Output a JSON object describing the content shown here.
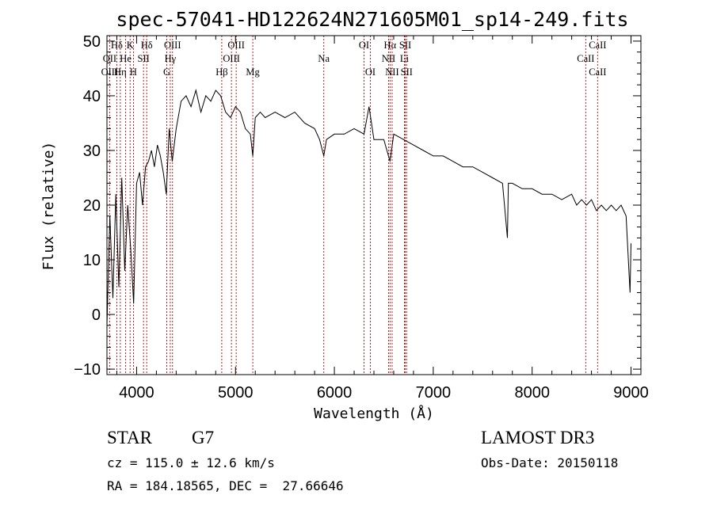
{
  "chart_data": {
    "type": "line",
    "title": "spec-57041-HD122624N271605M01_sp14-249.fits",
    "xlabel": "Wavelength (Å)",
    "ylabel": "Flux (relative)",
    "xlim": [
      3700,
      9100
    ],
    "ylim": [
      -11,
      51
    ],
    "xticks": [
      4000,
      5000,
      6000,
      7000,
      8000,
      9000
    ],
    "yticks": [
      -10,
      0,
      10,
      20,
      30,
      40,
      50
    ],
    "spectrum": {
      "x": [
        3700,
        3730,
        3760,
        3790,
        3820,
        3850,
        3880,
        3910,
        3940,
        3970,
        4000,
        4030,
        4060,
        4090,
        4120,
        4150,
        4180,
        4210,
        4240,
        4270,
        4300,
        4330,
        4360,
        4400,
        4450,
        4500,
        4550,
        4600,
        4650,
        4700,
        4750,
        4800,
        4850,
        4900,
        4950,
        5000,
        5050,
        5100,
        5150,
        5175,
        5200,
        5250,
        5300,
        5400,
        5500,
        5600,
        5700,
        5800,
        5850,
        5893,
        5920,
        6000,
        6100,
        6200,
        6300,
        6350,
        6400,
        6500,
        6563,
        6600,
        6700,
        6800,
        6900,
        7000,
        7100,
        7200,
        7300,
        7400,
        7500,
        7600,
        7700,
        7750,
        7760,
        7800,
        7900,
        8000,
        8100,
        8200,
        8300,
        8400,
        8450,
        8500,
        8550,
        8600,
        8650,
        8700,
        8750,
        8800,
        8850,
        8900,
        8950,
        8990,
        9000
      ],
      "y": [
        -2,
        18,
        3,
        22,
        5,
        25,
        8,
        20,
        12,
        2,
        24,
        26,
        20,
        27,
        28,
        30,
        27,
        31,
        29,
        26,
        22,
        34,
        28,
        34,
        39,
        40,
        38,
        41,
        37,
        40,
        39,
        41,
        40,
        37,
        36,
        38,
        37,
        34,
        33,
        29,
        36,
        37,
        36,
        37,
        36,
        37,
        35,
        34,
        32,
        29,
        32,
        33,
        33,
        34,
        33,
        38,
        32,
        32,
        28,
        33,
        32,
        31,
        30,
        29,
        29,
        28,
        27,
        27,
        26,
        25,
        24,
        14,
        24,
        24,
        23,
        23,
        22,
        22,
        21,
        22,
        20,
        21,
        20,
        21,
        19,
        20,
        19,
        20,
        19,
        20,
        18,
        4,
        13
      ]
    },
    "lines": [
      {
        "label": "Hδ",
        "wave": 3800,
        "row": 1
      },
      {
        "label": "OII",
        "wave": 3727,
        "row": 2
      },
      {
        "label": "OIII",
        "wave": 3727,
        "row": 3
      },
      {
        "label": "K",
        "wave": 3934,
        "row": 1
      },
      {
        "label": "He",
        "wave": 3889,
        "row": 2
      },
      {
        "label": "Hη",
        "wave": 3835,
        "row": 3
      },
      {
        "label": "SII",
        "wave": 4070,
        "row": 2
      },
      {
        "label": "H",
        "wave": 3968,
        "row": 3
      },
      {
        "label": "Hδ",
        "wave": 4102,
        "row": 1
      },
      {
        "label": "OIII",
        "wave": 4363,
        "row": 1
      },
      {
        "label": "Hγ",
        "wave": 4340,
        "row": 2
      },
      {
        "label": "G",
        "wave": 4305,
        "row": 3
      },
      {
        "label": "Hβ",
        "wave": 4861,
        "row": 3
      },
      {
        "label": "OIII",
        "wave": 5007,
        "row": 1
      },
      {
        "label": "OIII",
        "wave": 4959,
        "row": 2
      },
      {
        "label": "Mg",
        "wave": 5175,
        "row": 3
      },
      {
        "label": "Na",
        "wave": 5893,
        "row": 2
      },
      {
        "label": "OI",
        "wave": 6300,
        "row": 1
      },
      {
        "label": "OI",
        "wave": 6364,
        "row": 3
      },
      {
        "label": "Hα",
        "wave": 6563,
        "row": 1
      },
      {
        "label": "SII",
        "wave": 6717,
        "row": 1
      },
      {
        "label": "NII",
        "wave": 6548,
        "row": 2
      },
      {
        "label": "Li",
        "wave": 6708,
        "row": 2
      },
      {
        "label": "NII",
        "wave": 6584,
        "row": 3
      },
      {
        "label": "SII",
        "wave": 6731,
        "row": 3
      },
      {
        "label": "CaII",
        "wave": 8662,
        "row": 1
      },
      {
        "label": "CaII",
        "wave": 8542,
        "row": 2
      },
      {
        "label": "CaII",
        "wave": 8662,
        "row": 3
      }
    ]
  },
  "info": {
    "class_label": "STAR",
    "subclass": "G7",
    "survey": "LAMOST DR3",
    "cz": "cz = 115.0 ± 12.6 km/s",
    "obs_date": "Obs-Date: 20150118",
    "coords": "RA = 184.18565, DEC =  27.66646"
  },
  "colors": {
    "line_marker": "#c00000",
    "spectrum": "#000000"
  }
}
